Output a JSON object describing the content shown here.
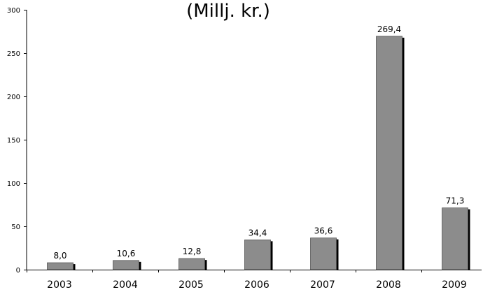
{
  "chart_data": {
    "type": "bar",
    "title": "(Millj. kr.)",
    "categories": [
      "2003",
      "2004",
      "2005",
      "2006",
      "2007",
      "2008",
      "2009"
    ],
    "values": [
      8.0,
      10.6,
      12.8,
      34.4,
      36.6,
      269.4,
      71.3
    ],
    "data_labels": [
      "8,0",
      "10,6",
      "12,8",
      "34,4",
      "36,6",
      "269,4",
      "71,3"
    ],
    "ylim": [
      0,
      300
    ],
    "yticks": [
      0,
      50,
      100,
      150,
      200,
      250,
      300
    ],
    "ytick_labels": [
      "0",
      "50",
      "100",
      "150",
      "200",
      "250",
      "300"
    ],
    "xlabel": "",
    "ylabel": "",
    "grid": false,
    "legend": "none",
    "colors": {
      "bar_fill": "#8c8c8c",
      "bar_shadow": "#000000",
      "axis": "#000000"
    }
  }
}
